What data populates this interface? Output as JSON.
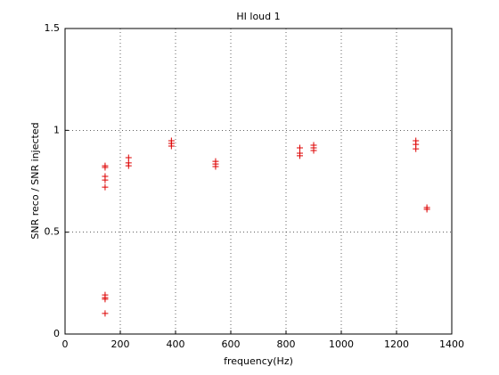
{
  "chart_data": {
    "type": "scatter",
    "title": "HI loud 1",
    "x_label": "frequency(Hz)",
    "y_label": "SNR reco / SNR injected",
    "xlim": [
      0,
      1400
    ],
    "ylim": [
      0,
      1.5
    ],
    "xticks": [
      0,
      200,
      400,
      600,
      800,
      1000,
      1200,
      1400
    ],
    "yticks": [
      0,
      0.5,
      1,
      1.5
    ],
    "grid": true,
    "marker": "+",
    "series": [
      {
        "color": "#dd0000",
        "x": [
          145,
          145,
          145,
          145,
          145,
          145,
          145,
          145,
          145,
          230,
          230,
          230,
          385,
          385,
          385,
          545,
          545,
          545,
          850,
          850,
          850,
          900,
          900,
          900,
          1270,
          1270,
          1270,
          1310,
          1310
        ],
        "values": [
          0.826,
          0.818,
          0.774,
          0.756,
          0.721,
          0.192,
          0.179,
          0.171,
          0.101,
          0.866,
          0.84,
          0.826,
          0.949,
          0.936,
          0.923,
          0.848,
          0.835,
          0.822,
          0.914,
          0.888,
          0.875,
          0.927,
          0.914,
          0.901,
          0.949,
          0.931,
          0.909,
          0.621,
          0.612
        ]
      }
    ]
  }
}
